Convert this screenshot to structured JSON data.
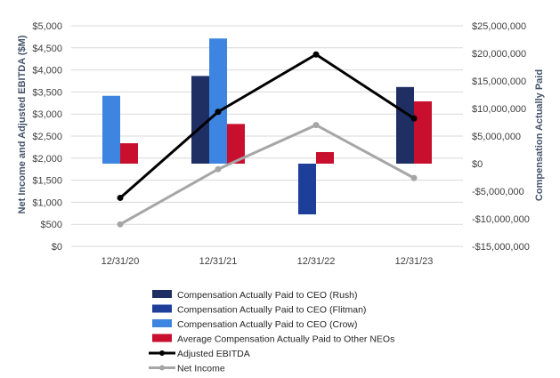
{
  "chart_data": {
    "type": "bar",
    "title": "",
    "categories": [
      "12/31/20",
      "12/31/21",
      "12/31/22",
      "12/31/23"
    ],
    "left_axis": {
      "label": "Net Income and Adjusted EBITDA ($M)",
      "ylim": [
        0,
        5000
      ],
      "ticks": [
        0,
        500,
        1000,
        1500,
        2000,
        2500,
        3000,
        3500,
        4000,
        4500,
        5000
      ],
      "tick_labels": [
        "$0",
        "$500",
        "$1,000",
        "$1,500",
        "$2,000",
        "$2,500",
        "$3,000",
        "$3,500",
        "$4,000",
        "$4,500",
        "$5,000"
      ]
    },
    "right_axis": {
      "label": "Compensation Actually Paid",
      "ylim": [
        -15000000,
        25000000
      ],
      "ticks": [
        -15000000,
        -10000000,
        -5000000,
        0,
        5000000,
        10000000,
        15000000,
        20000000,
        25000000
      ],
      "tick_labels": [
        "-$15,000,000",
        "-$10,000,000",
        "-$5,000,000",
        "$0",
        "$5,000,000",
        "$10,000,000",
        "$15,000,000",
        "$20,000,000",
        "$25,000,000"
      ]
    },
    "bar_series": [
      {
        "name": "Compensation Actually Paid to CEO (Rush)",
        "color": "#1f2f64",
        "values": [
          null,
          15900000,
          null,
          13900000
        ]
      },
      {
        "name": "Compensation Actually Paid to CEO (Flitman)",
        "color": "#1e3f99",
        "values": [
          null,
          null,
          -9200000,
          null
        ]
      },
      {
        "name": "Compensation Actually Paid to CEO (Crow)",
        "color": "#3d85e0",
        "values": [
          12300000,
          22700000,
          null,
          null
        ]
      },
      {
        "name": "Average Compensation Actually Paid to Other NEOs",
        "color": "#c8102e",
        "values": [
          3700000,
          7200000,
          2100000,
          11300000
        ]
      }
    ],
    "line_series": [
      {
        "name": "Adjusted EBITDA",
        "color": "#000000",
        "values": [
          1100,
          3050,
          4350,
          2900
        ]
      },
      {
        "name": "Net Income",
        "color": "#a6a6a6",
        "values": [
          500,
          1750,
          2750,
          1550
        ]
      }
    ],
    "legend_position": "bottom",
    "grid": true
  }
}
